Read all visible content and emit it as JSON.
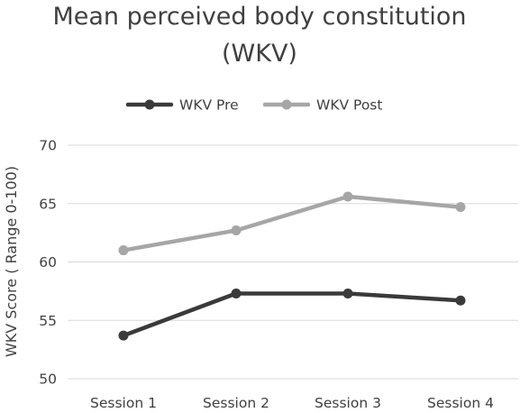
{
  "chart_data": {
    "type": "line",
    "title_lines": [
      "Mean perceived body constitution",
      "(WKV)"
    ],
    "xlabel": "",
    "ylabel": "WKV Score ( Range 0-100)",
    "categories": [
      "Session 1",
      "Session 2",
      "Session 3",
      "Session 4"
    ],
    "ylim": [
      50,
      70
    ],
    "yticks": [
      "50",
      "55",
      "60",
      "65",
      "70"
    ],
    "grid": true,
    "legend_position": "top-center",
    "series": [
      {
        "name": "WKV Pre",
        "color": "#3a3a3a",
        "values": [
          53.7,
          57.3,
          57.3,
          56.7
        ]
      },
      {
        "name": "WKV Post",
        "color": "#a6a6a6",
        "values": [
          61.0,
          62.7,
          65.6,
          64.7
        ]
      }
    ]
  }
}
